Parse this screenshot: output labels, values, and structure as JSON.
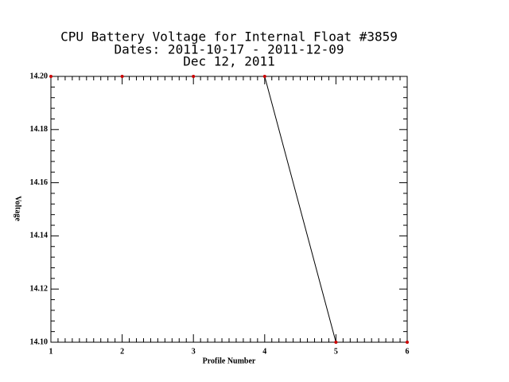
{
  "chart_data": {
    "type": "line",
    "title": "CPU Battery Voltage for Internal Float #3859",
    "subtitle": "Dates:  2011-10-17 -  2011-12-09",
    "date": "Dec 12, 2011",
    "x_label": "Profile Number",
    "y_label": "Voltage",
    "x": [
      1,
      2,
      3,
      4,
      5,
      6
    ],
    "series": [
      {
        "name": "Voltage",
        "color": "#000000",
        "marker_color": "#cc0000",
        "values": [
          14.2,
          14.2,
          14.2,
          14.2,
          14.1,
          14.1
        ]
      }
    ],
    "xlim": [
      1,
      6
    ],
    "xticks": [
      1,
      2,
      3,
      4,
      5,
      6
    ],
    "ylim": [
      14.1,
      14.2
    ],
    "yticks": [
      {
        "value": 14.1,
        "label": "14.10"
      },
      {
        "value": 14.12,
        "label": "14.12"
      },
      {
        "value": 14.14,
        "label": "14.14"
      },
      {
        "value": 14.16,
        "label": "14.16"
      },
      {
        "value": 14.18,
        "label": "14.18"
      },
      {
        "value": 14.2,
        "label": "14.20"
      }
    ]
  }
}
